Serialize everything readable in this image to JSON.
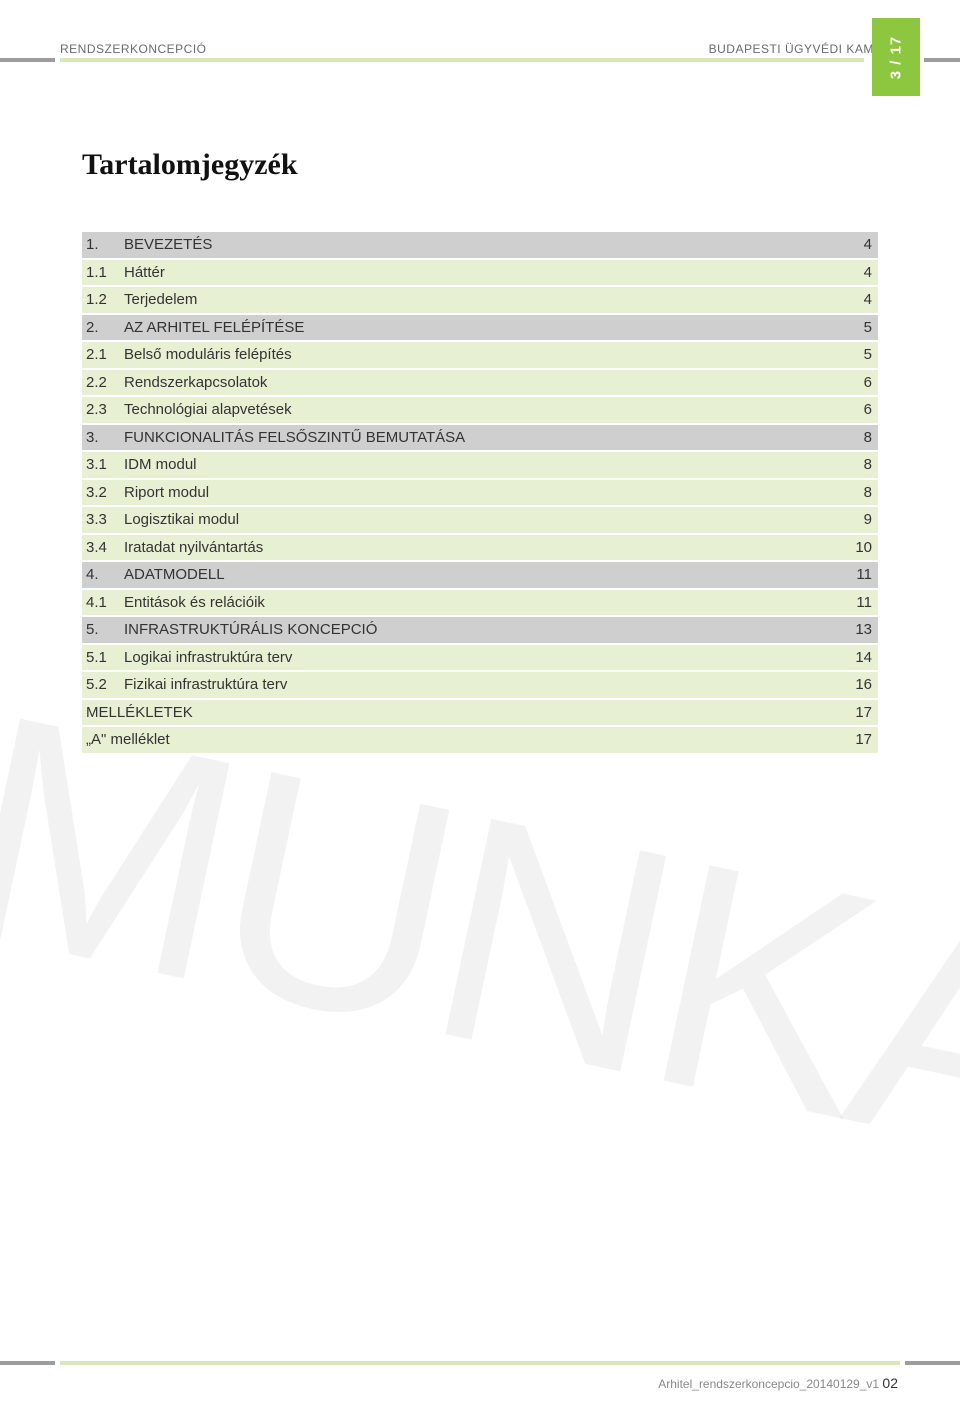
{
  "header": {
    "left": "RENDSZERKONCEPCIÓ",
    "right": "BUDAPESTI ÜGYVÉDI KAMARA",
    "page_badge": "3 / 17"
  },
  "title": "Tartalomjegyzék",
  "toc": [
    {
      "num": "1.",
      "label": "BEVEZETÉS",
      "page": "4",
      "level": 1
    },
    {
      "num": "1.1",
      "label": "Háttér",
      "page": "4",
      "level": 2
    },
    {
      "num": "1.2",
      "label": "Terjedelem",
      "page": "4",
      "level": 2
    },
    {
      "num": "2.",
      "label": "AZ ARHITEL FELÉPÍTÉSE",
      "page": "5",
      "level": 1
    },
    {
      "num": "2.1",
      "label": "Belső moduláris felépítés",
      "page": "5",
      "level": 2
    },
    {
      "num": "2.2",
      "label": "Rendszerkapcsolatok",
      "page": "6",
      "level": 2
    },
    {
      "num": "2.3",
      "label": "Technológiai alapvetések",
      "page": "6",
      "level": 2
    },
    {
      "num": "3.",
      "label": "FUNKCIONALITÁS FELSŐSZINTŰ BEMUTATÁSA",
      "page": "8",
      "level": 1
    },
    {
      "num": "3.1",
      "label": "IDM modul",
      "page": "8",
      "level": 2
    },
    {
      "num": "3.2",
      "label": "Riport modul",
      "page": "8",
      "level": 2
    },
    {
      "num": "3.3",
      "label": "Logisztikai modul",
      "page": "9",
      "level": 2
    },
    {
      "num": "3.4",
      "label": "Iratadat nyilvántartás",
      "page": "10",
      "level": 2
    },
    {
      "num": "4.",
      "label": "ADATMODELL",
      "page": "11",
      "level": 1
    },
    {
      "num": "4.1",
      "label": "Entitások és relációik",
      "page": "11",
      "level": 2
    },
    {
      "num": "5.",
      "label": "INFRASTRUKTÚRÁLIS KONCEPCIÓ",
      "page": "13",
      "level": 1
    },
    {
      "num": "5.1",
      "label": "Logikai infrastruktúra terv",
      "page": "14",
      "level": 2
    },
    {
      "num": "5.2",
      "label": "Fizikai infrastruktúra terv",
      "page": "16",
      "level": 2
    },
    {
      "num": "",
      "label": "MELLÉKLETEK",
      "page": "17",
      "level": 0,
      "num_text": "MELLÉKLETEK"
    },
    {
      "num": "",
      "label": "„A\" melléklet",
      "page": "17",
      "level": 0,
      "num_text": "„A\" melléklet"
    }
  ],
  "watermark": "MUNKA",
  "footer": {
    "doc": "Arhitel_rendszerkoncepcio_20140129_v1",
    "page": "02"
  },
  "colors": {
    "accent_green": "#8dc63f",
    "light_green": "#d9e8b7",
    "toc_green": "#e8f0d4",
    "toc_gray": "#cfcfcf",
    "rule_gray": "#9c9c9c"
  }
}
